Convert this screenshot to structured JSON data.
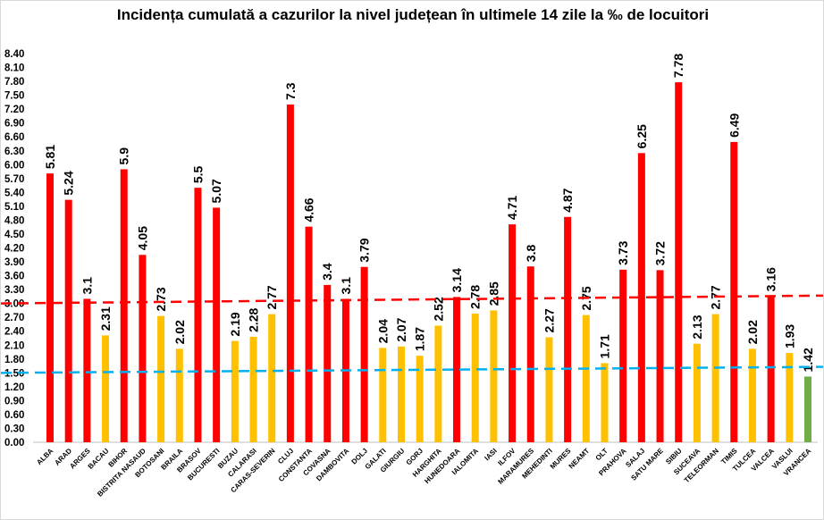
{
  "chart_data": {
    "type": "bar",
    "title": "Incidența cumulată a cazurilor la nivel județean în ultimele 14 zile la ‰ de locuitori",
    "xlabel": "",
    "ylabel": "",
    "ylim": [
      0,
      8.4
    ],
    "ytick_step": 0.3,
    "grid": false,
    "legend": "none",
    "colors": {
      "red": "#ff0000",
      "yellow": "#ffc000",
      "green": "#70ad47",
      "red_line": "#ff0000",
      "blue_line": "#00b0f0"
    },
    "categories": [
      "ALBA",
      "ARAD",
      "ARGES",
      "BACAU",
      "BIHOR",
      "BISTRITA NASAUD",
      "BOTOSANI",
      "BRAILA",
      "BRASOV",
      "BUCURESTI",
      "BUZAU",
      "CALARASI",
      "CARAS-SEVERIN",
      "CLUJ",
      "CONSTANTA",
      "COVASNA",
      "DAMBOVITA",
      "DOLJ",
      "GALATI",
      "GIURGIU",
      "GORJ",
      "HARGHITA",
      "HUNEDOARA",
      "IALOMITA",
      "IASI",
      "ILFOV",
      "MARAMURES",
      "MEHEDINTI",
      "MURES",
      "NEAMT",
      "OLT",
      "PRAHOVA",
      "SALAJ",
      "SATU MARE",
      "SIBIU",
      "SUCEAVA",
      "TELEORMAN",
      "TIMIS",
      "TULCEA",
      "VALCEA",
      "VASLUI",
      "VRANCEA"
    ],
    "values": [
      5.81,
      5.24,
      3.1,
      2.31,
      5.9,
      4.05,
      2.73,
      2.02,
      5.5,
      5.07,
      2.19,
      2.28,
      2.77,
      7.3,
      4.66,
      3.4,
      3.1,
      3.79,
      2.04,
      2.07,
      1.87,
      2.52,
      3.14,
      2.78,
      2.85,
      4.71,
      3.8,
      2.27,
      4.87,
      2.75,
      1.71,
      3.73,
      6.25,
      3.72,
      7.78,
      2.13,
      2.77,
      6.49,
      2.02,
      3.16,
      1.93,
      1.42
    ],
    "data_labels": [
      "5.81",
      "5.24",
      "3.1",
      "2.31",
      "5.9",
      "4.05",
      "2.73",
      "2.02",
      "5.5",
      "5.07",
      "2.19",
      "2.28",
      "2.77",
      "7.3",
      "4.66",
      "3.4",
      "3.1",
      "3.79",
      "2.04",
      "2.07",
      "1.87",
      "2.52",
      "3.14",
      "2.78",
      "2.85",
      "4.71",
      "3.8",
      "2.27",
      "4.87",
      "2.75",
      "1.71",
      "3.73",
      "6.25",
      "3.72",
      "7.78",
      "2.13",
      "2.77",
      "6.49",
      "2.02",
      "3.16",
      "1.93",
      "1.42"
    ],
    "reference_lines": [
      {
        "style": "dashed",
        "color": "red_line",
        "start": 3.0,
        "end": 3.17
      },
      {
        "style": "dashed",
        "color": "blue_line",
        "start": 1.5,
        "end": 1.63
      }
    ]
  }
}
